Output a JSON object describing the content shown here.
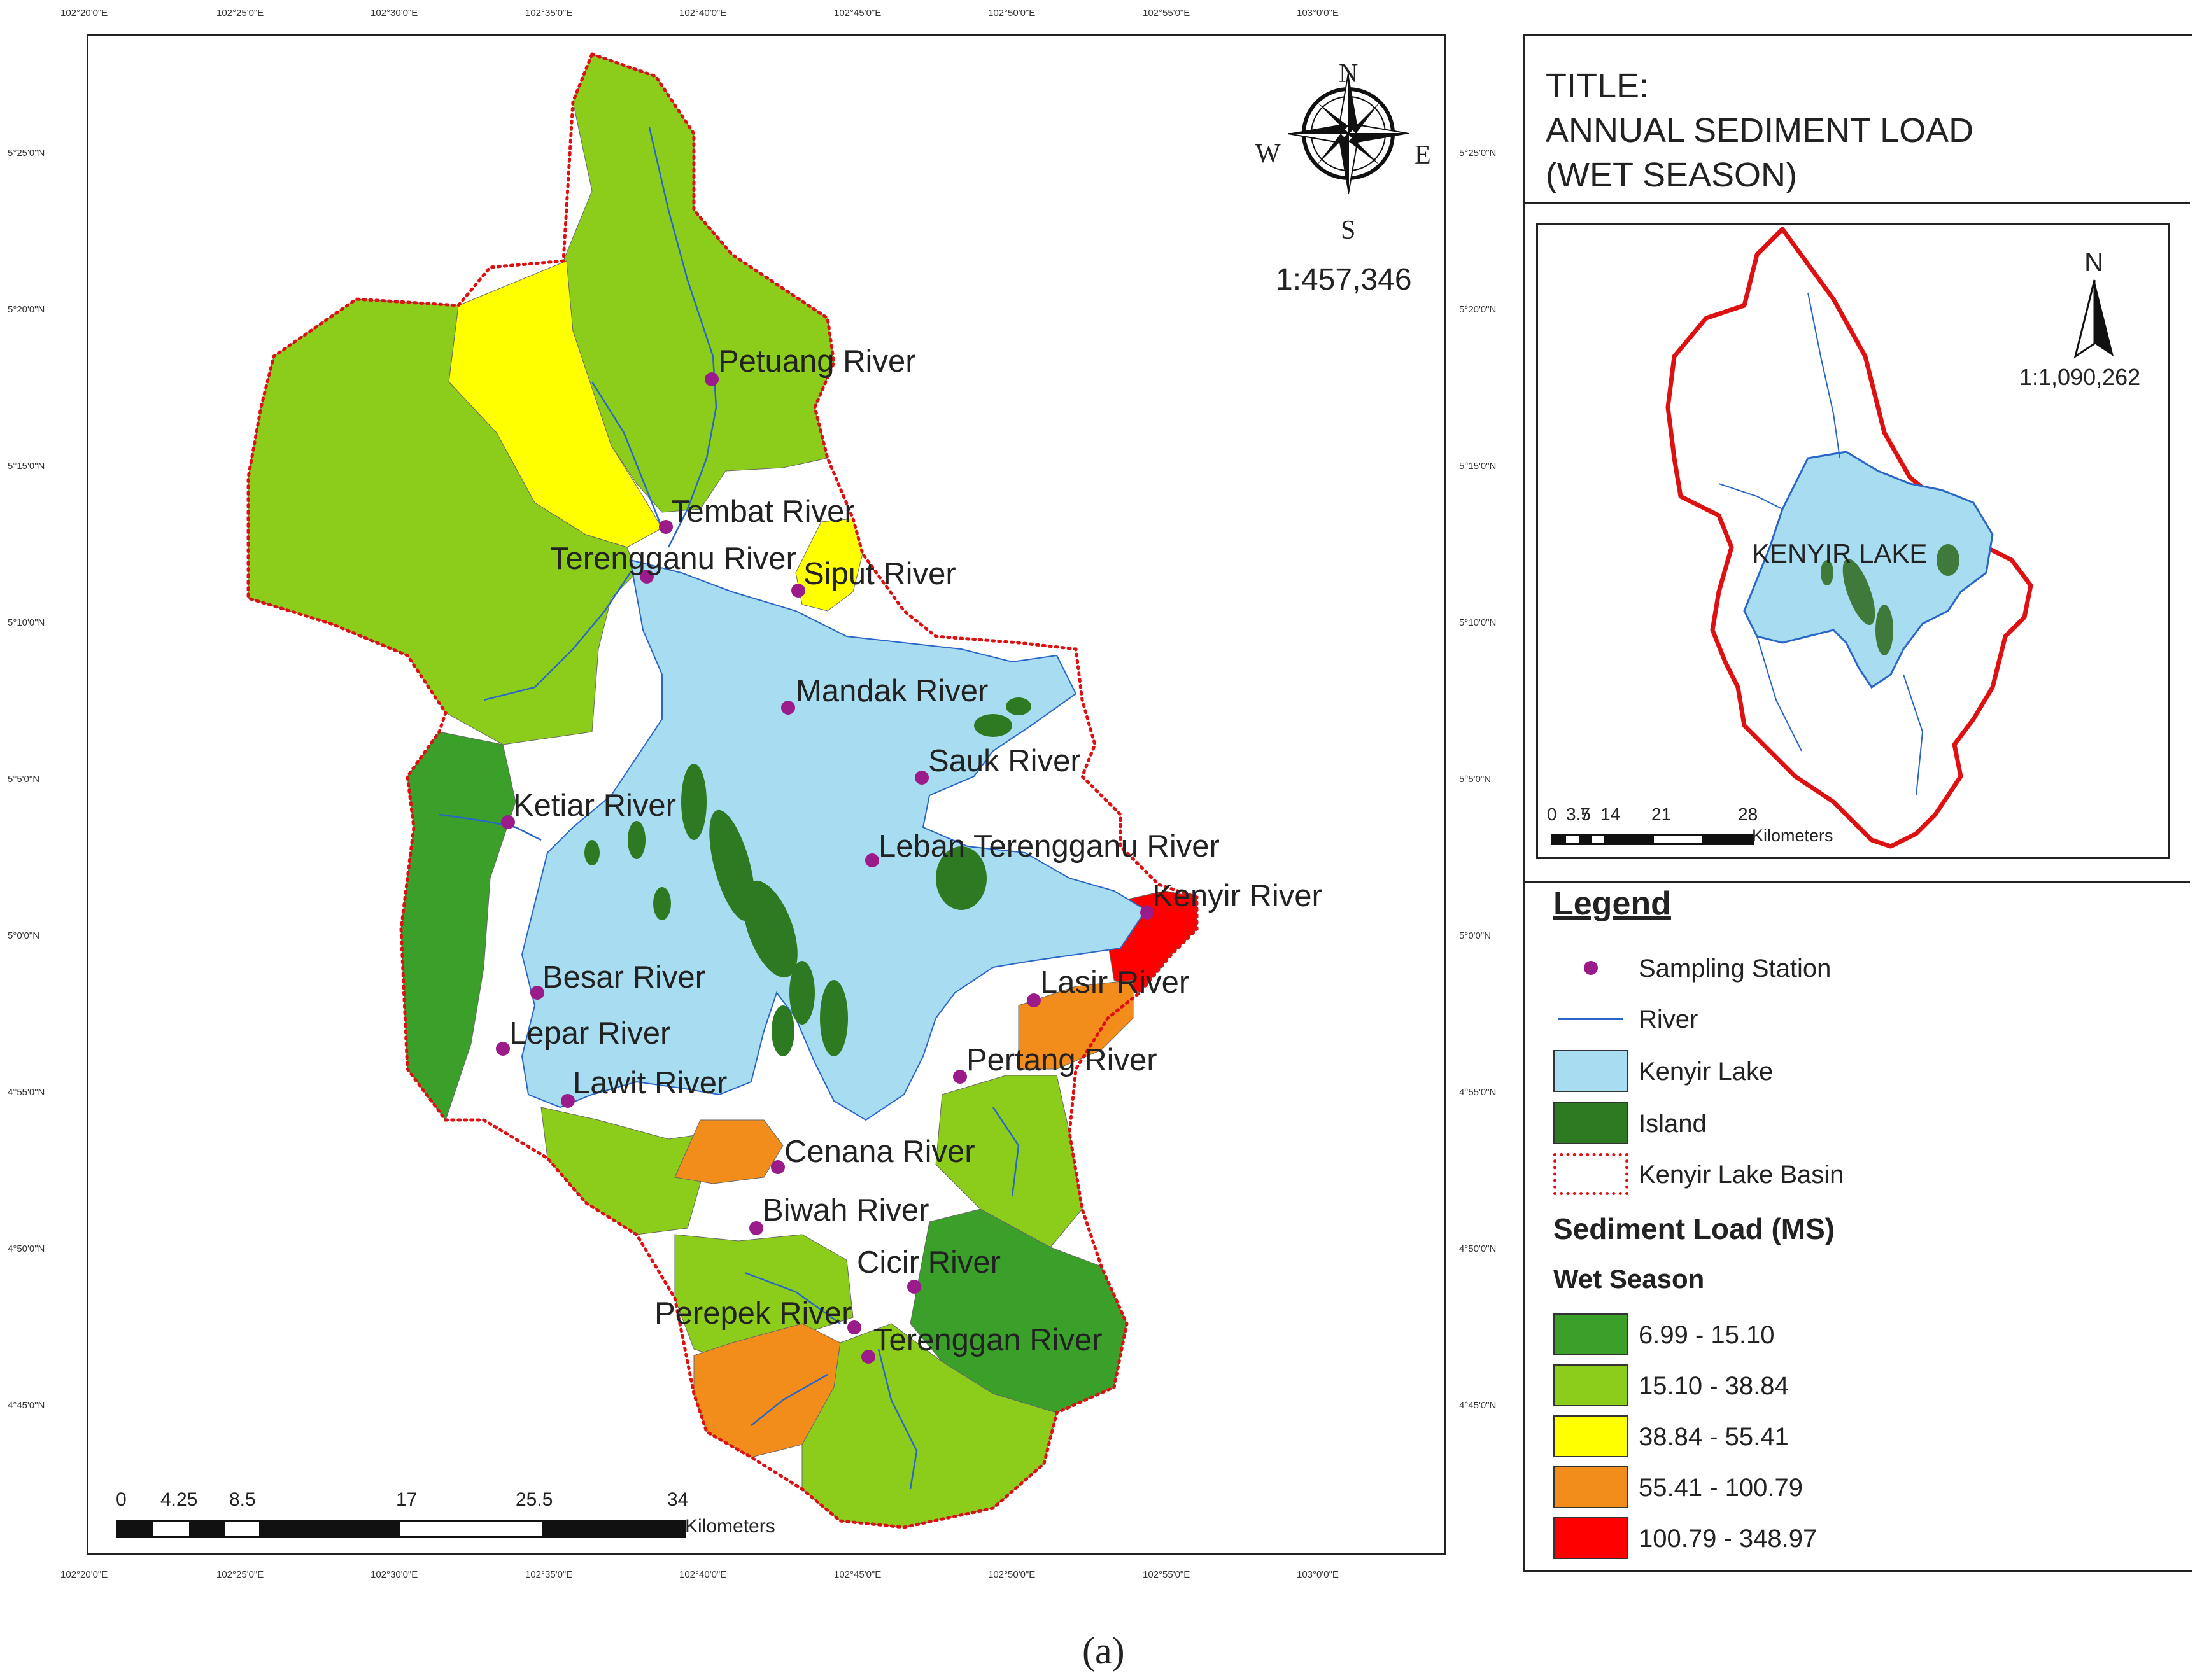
{
  "title": {
    "line1": "TITLE:",
    "line2": "ANNUAL SEDIMENT LOAD",
    "line3": "(WET SEASON)"
  },
  "main_map": {
    "scale": "1:457,346",
    "north_letters": {
      "n": "N",
      "s": "S",
      "e": "E",
      "w": "W"
    },
    "lon_labels": [
      "102°20'0\"E",
      "102°25'0\"E",
      "102°30'0\"E",
      "102°35'0\"E",
      "102°40'0\"E",
      "102°45'0\"E",
      "102°50'0\"E",
      "102°55'0\"E",
      "103°0'0\"E"
    ],
    "lat_labels": [
      "5°25'0\"N",
      "5°20'0\"N",
      "5°15'0\"N",
      "5°10'0\"N",
      "5°5'0\"N",
      "5°0'0\"N",
      "4°55'0\"N",
      "4°50'0\"N",
      "4°45'0\"N"
    ],
    "scalebar": {
      "ticks": [
        "0",
        "4.25",
        "8.5",
        "17",
        "25.5",
        "34"
      ],
      "unit": "Kilometers"
    },
    "stations": [
      "Petuang River",
      "Tembat River",
      "Terengganu River",
      "Siput River",
      "Mandak River",
      "Sauk River",
      "Leban Terengganu River",
      "Ketiar River",
      "Kenyir River",
      "Besar River",
      "Lasir River",
      "Lepar River",
      "Pertang River",
      "Lawit River",
      "Cenana River",
      "Biwah River",
      "Cicir River",
      "Perepek River",
      "Terenggan River"
    ]
  },
  "inset_map": {
    "north": "N",
    "scale": "1:1,090,262",
    "lake_label": "KENYIR LAKE",
    "scalebar": {
      "ticks": [
        "0",
        "3.5",
        "7",
        "14",
        "21",
        "28"
      ],
      "unit": "Kilometers"
    }
  },
  "legend": {
    "heading": "Legend",
    "items": [
      {
        "label": "Sampling Station"
      },
      {
        "label": "River"
      },
      {
        "label": "Kenyir Lake"
      },
      {
        "label": "Island"
      },
      {
        "label": "Kenyir Lake Basin"
      }
    ],
    "sediment_heading": "Sediment Load (MS)",
    "season_heading": "Wet Season",
    "classes": [
      {
        "label": "6.99 - 15.10",
        "color": "#3aa02a"
      },
      {
        "label": "15.10 - 38.84",
        "color": "#8ccd1c"
      },
      {
        "label": "38.84 - 55.41",
        "color": "#ffff00"
      },
      {
        "label": "55.41 - 100.79",
        "color": "#f28c1a"
      },
      {
        "label": "100.79 - 348.97",
        "color": "#ff0000"
      }
    ],
    "colors": {
      "lake": "#a8dcf0",
      "island": "#2d7a22",
      "river": "#2a66c8",
      "station": "#9b1b8a",
      "basin": "#dd1111"
    }
  },
  "caption": "(a)"
}
